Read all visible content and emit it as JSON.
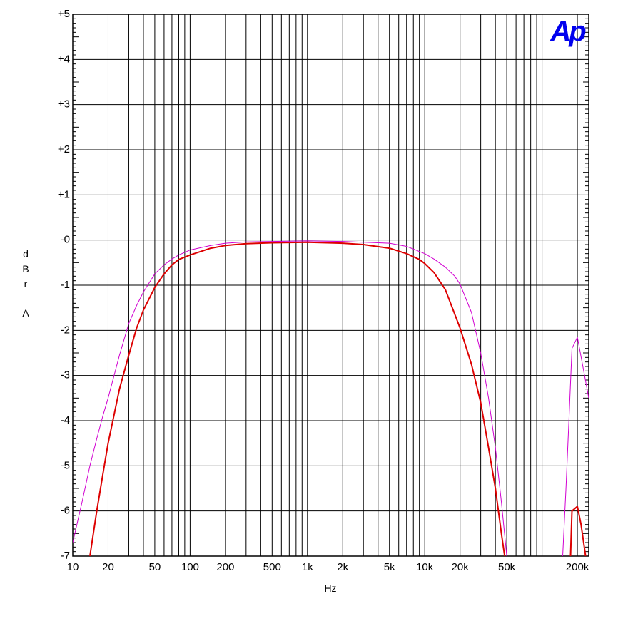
{
  "chart_data": {
    "type": "line",
    "title": "",
    "xlabel": "Hz",
    "ylabel": "d B r A",
    "x_scale": "log",
    "xlim": [
      10,
      250000
    ],
    "ylim": [
      -7,
      5
    ],
    "grid": true,
    "x_ticks": [
      {
        "v": 10,
        "label": "10"
      },
      {
        "v": 20,
        "label": "20"
      },
      {
        "v": 50,
        "label": "50"
      },
      {
        "v": 100,
        "label": "100"
      },
      {
        "v": 200,
        "label": "200"
      },
      {
        "v": 500,
        "label": "500"
      },
      {
        "v": 1000,
        "label": "1k"
      },
      {
        "v": 2000,
        "label": "2k"
      },
      {
        "v": 5000,
        "label": "5k"
      },
      {
        "v": 10000,
        "label": "10k"
      },
      {
        "v": 20000,
        "label": "20k"
      },
      {
        "v": 50000,
        "label": "50k"
      },
      {
        "v": 200000,
        "label": "200k"
      }
    ],
    "y_ticks": [
      {
        "v": 5,
        "label": "+5"
      },
      {
        "v": 4,
        "label": "+4"
      },
      {
        "v": 3,
        "label": "+3"
      },
      {
        "v": 2,
        "label": "+2"
      },
      {
        "v": 1,
        "label": "+1"
      },
      {
        "v": 0,
        "label": "-0"
      },
      {
        "v": -1,
        "label": "-1"
      },
      {
        "v": -2,
        "label": "-2"
      },
      {
        "v": -3,
        "label": "-3"
      },
      {
        "v": -4,
        "label": "-4"
      },
      {
        "v": -5,
        "label": "-5"
      },
      {
        "v": -6,
        "label": "-6"
      },
      {
        "v": -7,
        "label": "-7"
      }
    ],
    "series": [
      {
        "color": "#dd0000",
        "width": 2,
        "points": [
          [
            14,
            -7.0
          ],
          [
            16,
            -6.0
          ],
          [
            18,
            -5.2
          ],
          [
            20,
            -4.5
          ],
          [
            25,
            -3.3
          ],
          [
            30,
            -2.55
          ],
          [
            35,
            -1.95
          ],
          [
            40,
            -1.55
          ],
          [
            50,
            -1.05
          ],
          [
            60,
            -0.75
          ],
          [
            70,
            -0.55
          ],
          [
            80,
            -0.43
          ],
          [
            100,
            -0.33
          ],
          [
            150,
            -0.18
          ],
          [
            200,
            -0.12
          ],
          [
            300,
            -0.08
          ],
          [
            500,
            -0.06
          ],
          [
            1000,
            -0.05
          ],
          [
            2000,
            -0.07
          ],
          [
            3000,
            -0.1
          ],
          [
            5000,
            -0.18
          ],
          [
            7000,
            -0.3
          ],
          [
            9000,
            -0.43
          ],
          [
            10000,
            -0.52
          ],
          [
            12000,
            -0.72
          ],
          [
            15000,
            -1.1
          ],
          [
            20000,
            -1.95
          ],
          [
            25000,
            -2.75
          ],
          [
            30000,
            -3.6
          ],
          [
            35000,
            -4.6
          ],
          [
            40000,
            -5.5
          ],
          [
            45000,
            -6.5
          ],
          [
            48000,
            -7.0
          ]
        ]
      },
      {
        "color": "#dd0000",
        "width": 2,
        "points": [
          [
            175000,
            -7.0
          ],
          [
            180000,
            -6.0
          ],
          [
            200000,
            -5.9
          ],
          [
            215000,
            -6.3
          ],
          [
            235000,
            -7.0
          ]
        ]
      },
      {
        "color": "#d100d1",
        "width": 1,
        "points": [
          [
            10,
            -6.7
          ],
          [
            12,
            -5.8
          ],
          [
            14,
            -5.0
          ],
          [
            16,
            -4.4
          ],
          [
            18,
            -3.9
          ],
          [
            20,
            -3.5
          ],
          [
            25,
            -2.55
          ],
          [
            30,
            -1.85
          ],
          [
            35,
            -1.45
          ],
          [
            40,
            -1.15
          ],
          [
            50,
            -0.75
          ],
          [
            60,
            -0.55
          ],
          [
            70,
            -0.42
          ],
          [
            80,
            -0.33
          ],
          [
            100,
            -0.22
          ],
          [
            150,
            -0.12
          ],
          [
            200,
            -0.07
          ],
          [
            300,
            -0.04
          ],
          [
            500,
            -0.03
          ],
          [
            1000,
            -0.02
          ],
          [
            2000,
            -0.03
          ],
          [
            5000,
            -0.07
          ],
          [
            7000,
            -0.14
          ],
          [
            10000,
            -0.3
          ],
          [
            12000,
            -0.42
          ],
          [
            15000,
            -0.6
          ],
          [
            18000,
            -0.8
          ],
          [
            20000,
            -0.98
          ],
          [
            25000,
            -1.6
          ],
          [
            30000,
            -2.5
          ],
          [
            35000,
            -3.5
          ],
          [
            40000,
            -4.6
          ],
          [
            45000,
            -5.8
          ],
          [
            50000,
            -7.0
          ]
        ]
      },
      {
        "color": "#d100d1",
        "width": 1,
        "points": [
          [
            150000,
            -7.0
          ],
          [
            160000,
            -5.5
          ],
          [
            170000,
            -3.9
          ],
          [
            180000,
            -2.4
          ],
          [
            200000,
            -2.15
          ],
          [
            250000,
            -3.5
          ]
        ]
      }
    ]
  },
  "logo": {
    "text": "Ap",
    "color": "#0000ee"
  }
}
